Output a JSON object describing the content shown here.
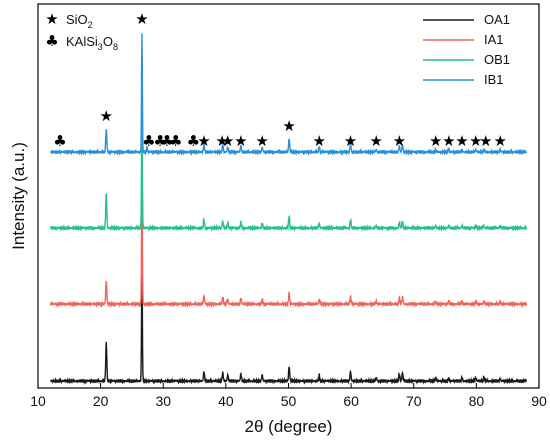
{
  "chart_data": {
    "type": "line",
    "xlabel": "2θ (degree)",
    "ylabel": "Intensity (a.u.)",
    "xlim": [
      10,
      90
    ],
    "x_ticks": [
      "10",
      "20",
      "30",
      "40",
      "50",
      "60",
      "70",
      "80",
      "90"
    ],
    "y_ticks": "none",
    "grid": false,
    "legend_position": "top-right",
    "series": [
      {
        "name": "OA1",
        "color": "#1a1a1a",
        "peaks": [
          [
            20.9,
            0.32
          ],
          [
            26.6,
            1.0
          ],
          [
            36.5,
            0.08
          ],
          [
            39.5,
            0.07
          ],
          [
            40.3,
            0.05
          ],
          [
            42.4,
            0.06
          ],
          [
            45.8,
            0.05
          ],
          [
            50.1,
            0.12
          ],
          [
            54.9,
            0.05
          ],
          [
            59.9,
            0.08
          ],
          [
            64.0,
            0.03
          ],
          [
            67.7,
            0.06
          ],
          [
            68.2,
            0.07
          ],
          [
            73.5,
            0.03
          ],
          [
            75.6,
            0.02
          ],
          [
            77.7,
            0.03
          ],
          [
            79.9,
            0.03
          ],
          [
            81.2,
            0.03
          ],
          [
            83.8,
            0.02
          ]
        ]
      },
      {
        "name": "IA1",
        "color": "#f0645a",
        "peaks": [
          [
            20.9,
            0.19
          ],
          [
            26.6,
            1.0
          ],
          [
            36.5,
            0.07
          ],
          [
            39.5,
            0.06
          ],
          [
            40.3,
            0.04
          ],
          [
            42.4,
            0.05
          ],
          [
            45.8,
            0.04
          ],
          [
            50.1,
            0.09
          ],
          [
            54.9,
            0.04
          ],
          [
            59.9,
            0.06
          ],
          [
            64.0,
            0.02
          ],
          [
            67.7,
            0.05
          ],
          [
            68.2,
            0.06
          ],
          [
            73.5,
            0.02
          ],
          [
            75.6,
            0.02
          ],
          [
            77.7,
            0.02
          ],
          [
            79.9,
            0.02
          ],
          [
            81.2,
            0.02
          ],
          [
            83.8,
            0.02
          ]
        ]
      },
      {
        "name": "OB1",
        "color": "#27c08c",
        "peaks": [
          [
            20.9,
            0.28
          ],
          [
            26.6,
            1.0
          ],
          [
            36.5,
            0.07
          ],
          [
            39.5,
            0.06
          ],
          [
            40.3,
            0.04
          ],
          [
            42.4,
            0.05
          ],
          [
            45.8,
            0.04
          ],
          [
            50.1,
            0.1
          ],
          [
            54.9,
            0.04
          ],
          [
            59.9,
            0.07
          ],
          [
            64.0,
            0.02
          ],
          [
            67.7,
            0.05
          ],
          [
            68.2,
            0.06
          ],
          [
            73.5,
            0.02
          ],
          [
            75.6,
            0.02
          ],
          [
            77.7,
            0.02
          ],
          [
            79.9,
            0.02
          ],
          [
            81.2,
            0.02
          ],
          [
            83.8,
            0.02
          ]
        ]
      },
      {
        "name": "IB1",
        "color": "#2b8fd6",
        "peaks": [
          [
            20.9,
            0.19
          ],
          [
            26.6,
            1.0
          ],
          [
            27.4,
            0.04
          ],
          [
            36.5,
            0.06
          ],
          [
            39.5,
            0.06
          ],
          [
            40.3,
            0.04
          ],
          [
            42.4,
            0.05
          ],
          [
            45.8,
            0.04
          ],
          [
            50.1,
            0.11
          ],
          [
            54.9,
            0.04
          ],
          [
            59.9,
            0.07
          ],
          [
            64.0,
            0.02
          ],
          [
            67.7,
            0.05
          ],
          [
            68.2,
            0.06
          ],
          [
            73.5,
            0.02
          ],
          [
            75.6,
            0.02
          ],
          [
            77.7,
            0.02
          ],
          [
            79.9,
            0.02
          ],
          [
            81.2,
            0.02
          ],
          [
            83.8,
            0.02
          ]
        ]
      }
    ],
    "phase_legend": [
      {
        "symbol": "★",
        "name_parts": [
          {
            "t": "SiO",
            "sub": false
          },
          {
            "t": "2",
            "sub": true
          }
        ]
      },
      {
        "symbol": "♣",
        "name_parts": [
          {
            "t": "KAlSi",
            "sub": false
          },
          {
            "t": "3",
            "sub": true
          },
          {
            "t": "O",
            "sub": false
          },
          {
            "t": "8",
            "sub": true
          }
        ]
      }
    ],
    "annotations": [
      {
        "x": 13.5,
        "symbol": "♣"
      },
      {
        "x": 20.9,
        "symbol": "★"
      },
      {
        "x": 26.6,
        "symbol": "★"
      },
      {
        "x": 27.7,
        "symbol": "♣"
      },
      {
        "x": 29.5,
        "symbol": "♣"
      },
      {
        "x": 30.6,
        "symbol": "♣"
      },
      {
        "x": 32.0,
        "symbol": "♣"
      },
      {
        "x": 34.8,
        "symbol": "♣"
      },
      {
        "x": 36.5,
        "symbol": "★"
      },
      {
        "x": 39.4,
        "symbol": "★"
      },
      {
        "x": 40.3,
        "symbol": "★"
      },
      {
        "x": 42.4,
        "symbol": "★"
      },
      {
        "x": 45.8,
        "symbol": "★"
      },
      {
        "x": 50.1,
        "symbol": "★"
      },
      {
        "x": 54.9,
        "symbol": "★"
      },
      {
        "x": 59.9,
        "symbol": "★"
      },
      {
        "x": 64.0,
        "symbol": "★"
      },
      {
        "x": 67.7,
        "symbol": "★"
      },
      {
        "x": 73.5,
        "symbol": "★"
      },
      {
        "x": 75.6,
        "symbol": "★"
      },
      {
        "x": 77.7,
        "symbol": "★"
      },
      {
        "x": 79.9,
        "symbol": "★"
      },
      {
        "x": 81.5,
        "symbol": "★"
      },
      {
        "x": 83.8,
        "symbol": "★"
      }
    ]
  }
}
